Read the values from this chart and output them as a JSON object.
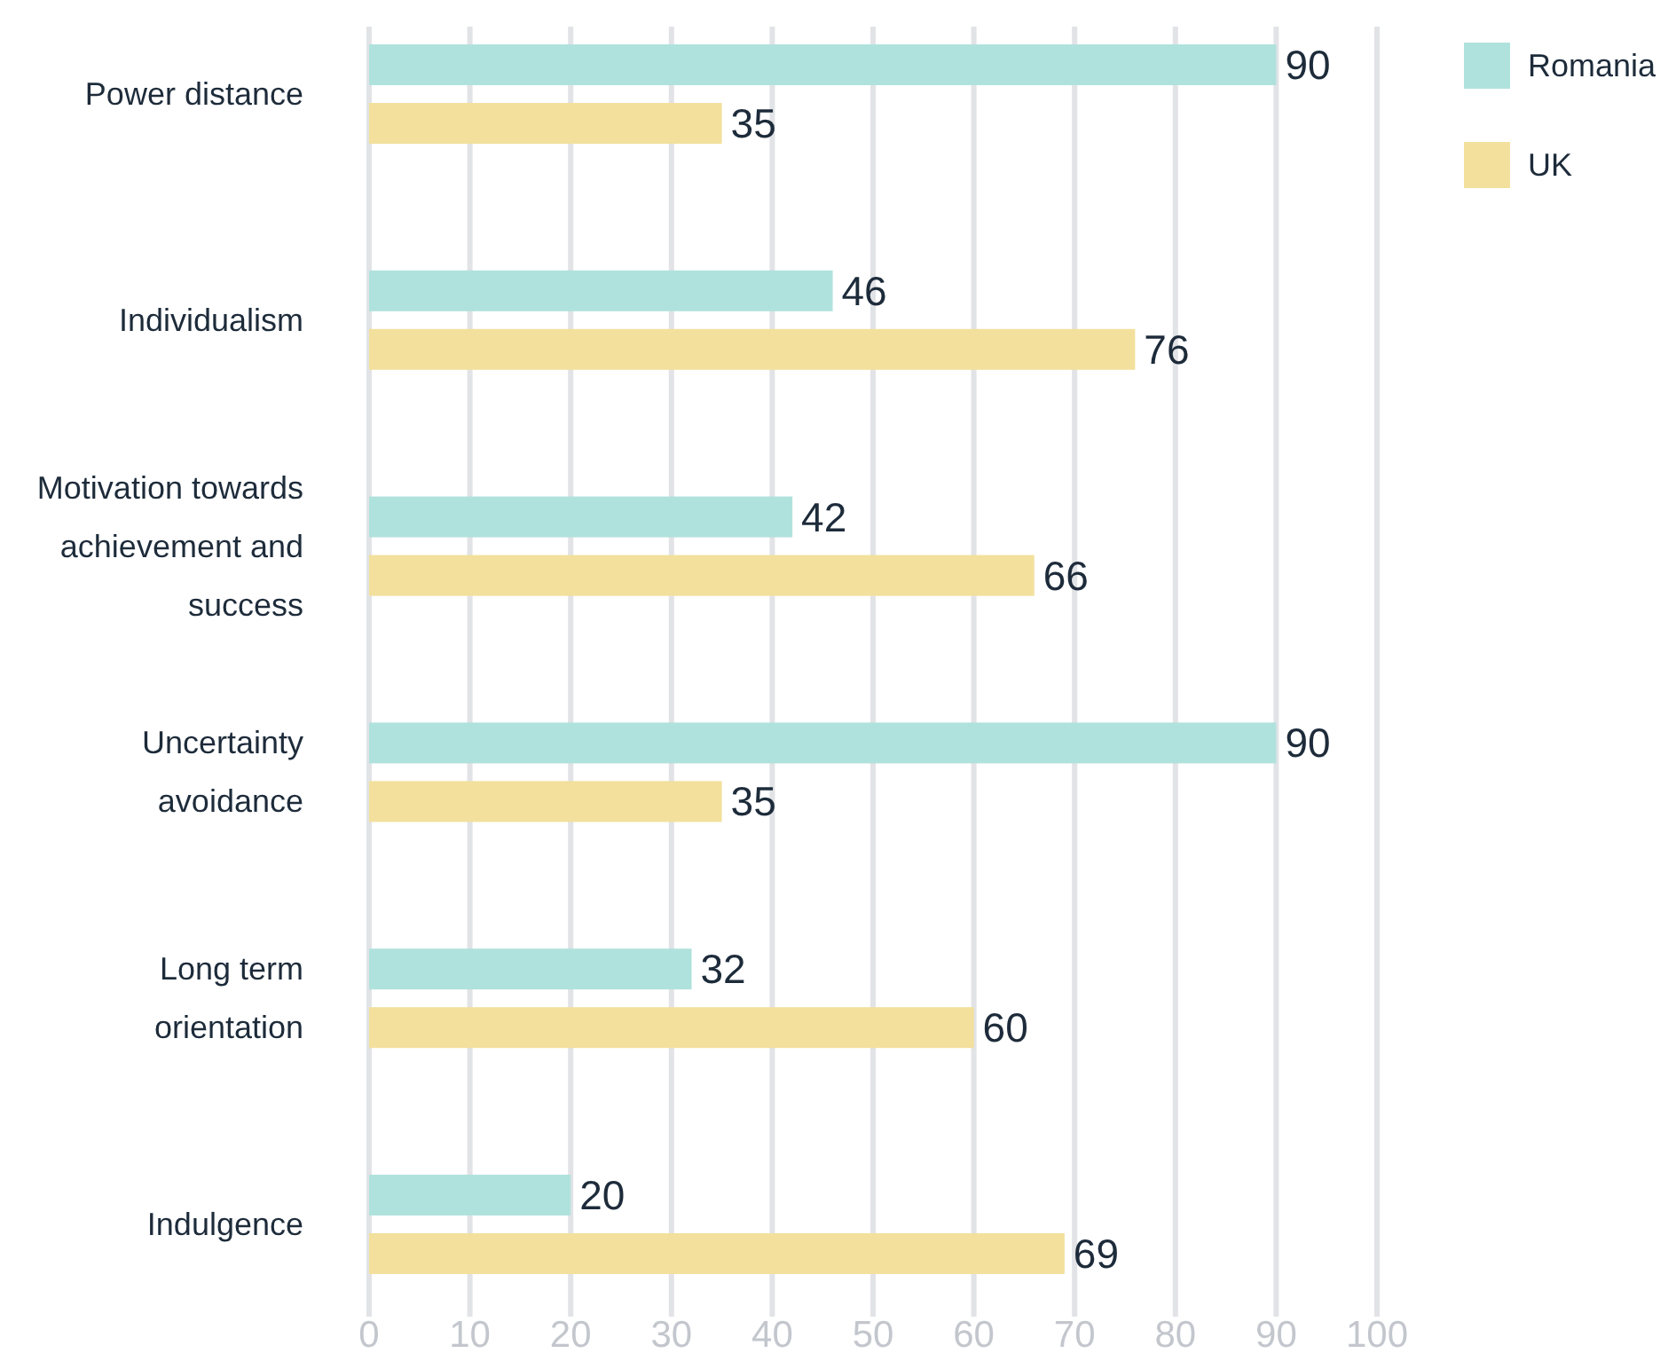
{
  "chart_data": {
    "type": "bar",
    "orientation": "horizontal",
    "categories": [
      "Power distance",
      "Individualism",
      "Motivation towards achievement and success",
      "Uncertainty avoidance",
      "Long term orientation",
      "Indulgence"
    ],
    "series": [
      {
        "name": "Romania",
        "color": "#b0e2dd",
        "values": [
          90,
          46,
          42,
          90,
          32,
          20
        ]
      },
      {
        "name": "UK",
        "color": "#f2e09c",
        "values": [
          35,
          76,
          66,
          35,
          60,
          69
        ]
      }
    ],
    "xlim": [
      0,
      100
    ],
    "xticks": [
      0,
      10,
      20,
      30,
      40,
      50,
      60,
      70,
      80,
      90,
      100
    ],
    "grid": "x",
    "legend": "top right",
    "data_labels": true
  }
}
